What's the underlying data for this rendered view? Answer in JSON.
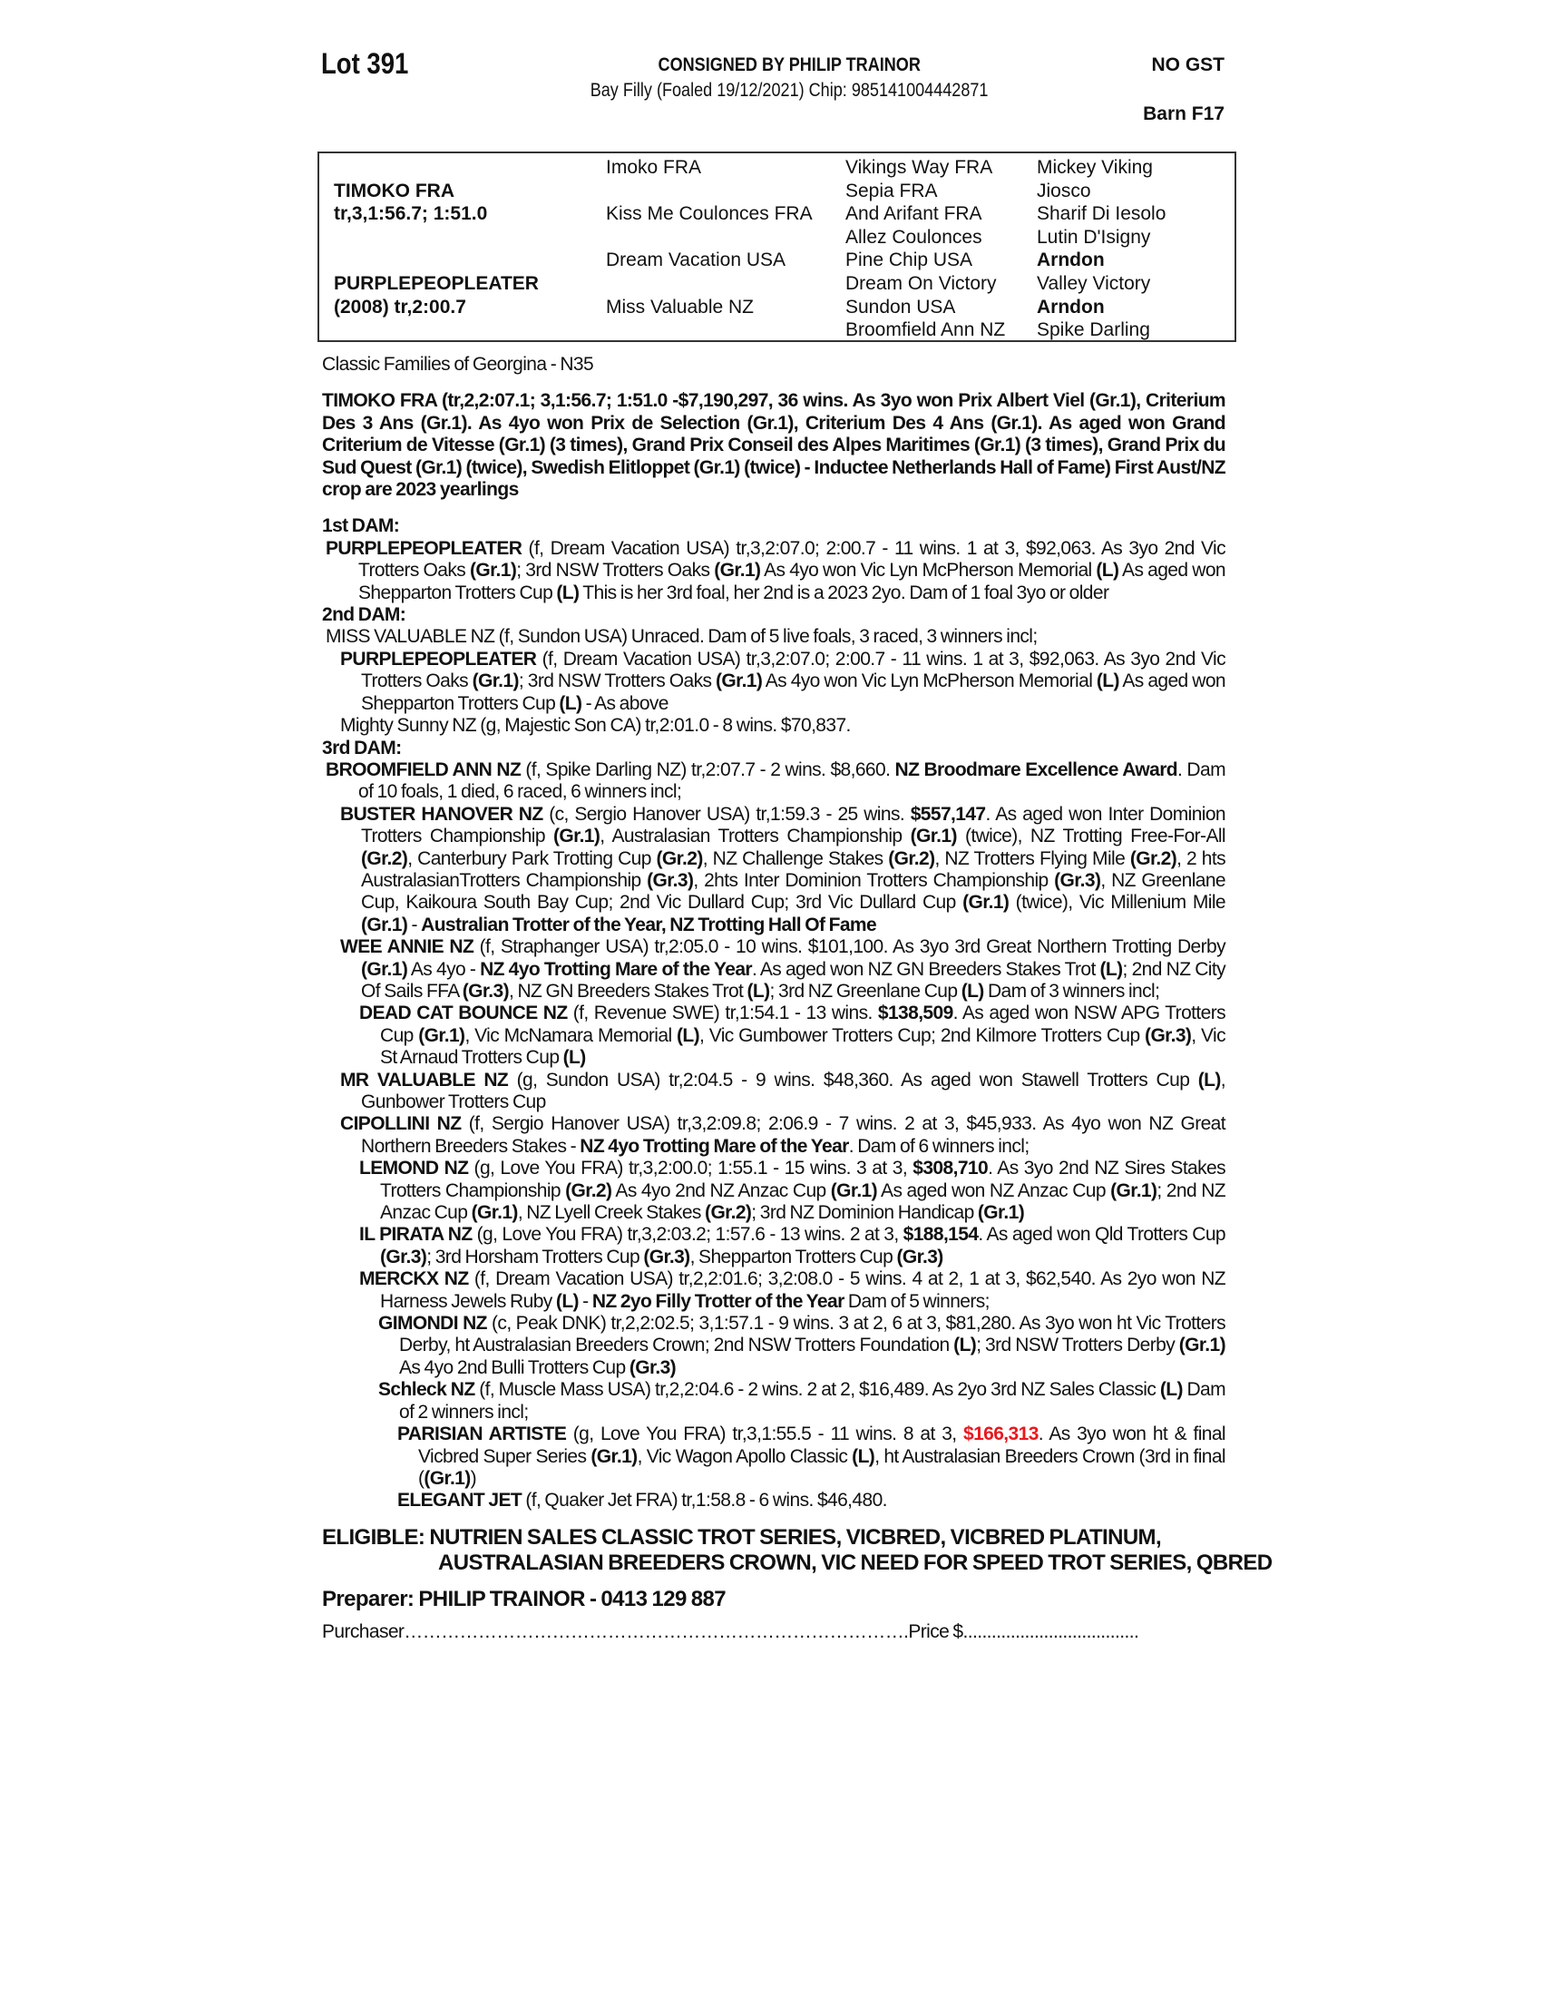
{
  "header": {
    "lot": "Lot 391",
    "consigned": "CONSIGNED BY PHILIP TRAINOR",
    "subtitle": "Bay Filly (Foaled 19/12/2021) Chip: 985141004442871",
    "gst": "NO GST",
    "barn": "Barn F17"
  },
  "pedigree": {
    "sire": "TIMOKO FRA",
    "sire_record": "tr,3,1:56.7; 1:51.0",
    "dam": "PURPLEPEOPLEATER",
    "dam_record": "(2008) tr,2:00.7",
    "gen2": [
      "Imoko FRA",
      "Kiss Me Coulonces FRA",
      "Dream Vacation USA",
      "Miss Valuable NZ"
    ],
    "gen3": [
      "Vikings Way FRA",
      "Sepia FRA",
      "And Arifant FRA",
      "Allez Coulonces",
      "Pine Chip USA",
      "Dream On Victory",
      "Sundon USA",
      "Broomfield Ann NZ"
    ],
    "gen4": [
      "Mickey Viking",
      "Jiosco",
      "Sharif Di Iesolo",
      "Lutin D'Isigny",
      "Arndon",
      "Valley Victory",
      "Arndon",
      "Spike Darling"
    ],
    "gen4_bold": [
      false,
      false,
      false,
      false,
      true,
      false,
      true,
      false
    ]
  },
  "family": "Classic Families of Georgina - N35",
  "sire_text": "TIMOKO FRA (tr,2,2:07.1; 3,1:56.7; 1:51.0 -$7,190,297, 36 wins. As 3yo won Prix Albert Viel (Gr.1), Criterium Des 3 Ans (Gr.1). As 4yo won Prix de Selection (Gr.1), Criterium Des 4 Ans (Gr.1). As aged won Grand Criterium de Vitesse (Gr.1) (3 times), Grand Prix Conseil des Alpes Maritimes (Gr.1) (3 times), Grand Prix du Sud Quest (Gr.1) (twice), Swedish Elitloppet (Gr.1) (twice) - Inductee Netherlands Hall of Fame) First Aust/NZ  crop are 2023 yearlings",
  "highlight_color": "#e8191e",
  "sections": [
    {
      "heading": "1st DAM:",
      "entries": [
        {
          "level": 0,
          "segs": [
            [
              "PURPLEPEOPLEATER",
              "b"
            ],
            [
              " (f, Dream Vacation USA) tr,3,2:07.0; 2:00.7 - 11 wins. 1 at 3, $92,063. As 3yo 2nd Vic Trotters Oaks ",
              "n"
            ],
            [
              "(Gr.1)",
              "b"
            ],
            [
              "; 3rd NSW Trotters Oaks ",
              "n"
            ],
            [
              "(Gr.1)",
              "b"
            ],
            [
              " As 4yo won Vic Lyn McPherson Memorial ",
              "n"
            ],
            [
              "(L)",
              "b"
            ],
            [
              " As aged won Shepparton Trotters Cup ",
              "n"
            ],
            [
              "(L)",
              "b"
            ],
            [
              " This is her 3rd foal, her 2nd is a 2023 2yo. Dam of 1 foal 3yo or older",
              "n"
            ]
          ]
        }
      ]
    },
    {
      "heading": "2nd DAM:",
      "entries": [
        {
          "level": 0,
          "segs": [
            [
              "MISS VALUABLE NZ (f, Sundon USA) Unraced. Dam of 5 live foals, 3 raced, 3 winners incl;",
              "n"
            ]
          ]
        },
        {
          "level": 1,
          "segs": [
            [
              "PURPLEPEOPLEATER",
              "b"
            ],
            [
              " (f, Dream Vacation USA) tr,3,2:07.0; 2:00.7 - 11 wins. 1 at 3, $92,063. As 3yo 2nd Vic Trotters Oaks ",
              "n"
            ],
            [
              "(Gr.1)",
              "b"
            ],
            [
              "; 3rd NSW Trotters Oaks ",
              "n"
            ],
            [
              "(Gr.1)",
              "b"
            ],
            [
              " As 4yo won Vic Lyn McPherson Memorial ",
              "n"
            ],
            [
              "(L)",
              "b"
            ],
            [
              " As aged won Shepparton Trotters Cup ",
              "n"
            ],
            [
              "(L)",
              "b"
            ],
            [
              " - As above",
              "n"
            ]
          ]
        },
        {
          "level": 1,
          "segs": [
            [
              "Mighty Sunny NZ (g, Majestic Son CA) tr,2:01.0 - 8 wins. $70,837.",
              "n"
            ]
          ]
        }
      ]
    },
    {
      "heading": "3rd DAM:",
      "entries": [
        {
          "level": 0,
          "segs": [
            [
              "BROOMFIELD ANN NZ",
              "b"
            ],
            [
              " (f, Spike Darling NZ) tr,2:07.7 - 2 wins. $8,660. ",
              "n"
            ],
            [
              "NZ Broodmare Excellence Award",
              "b"
            ],
            [
              ". Dam of 10 foals, 1 died, 6 raced, 6 winners incl;",
              "n"
            ]
          ]
        },
        {
          "level": 1,
          "segs": [
            [
              "BUSTER HANOVER NZ",
              "b"
            ],
            [
              " (c, Sergio Hanover USA) tr,1:59.3 - 25 wins. ",
              "n"
            ],
            [
              "$557,147",
              "b"
            ],
            [
              ". As aged won Inter Dominion Trotters Championship ",
              "n"
            ],
            [
              "(Gr.1)",
              "b"
            ],
            [
              ", Australasian Trotters Championship ",
              "n"
            ],
            [
              "(Gr.1)",
              "b"
            ],
            [
              " (twice), NZ Trotting Free-For-All ",
              "n"
            ],
            [
              "(Gr.2)",
              "b"
            ],
            [
              ", Canterbury Park Trotting Cup ",
              "n"
            ],
            [
              "(Gr.2)",
              "b"
            ],
            [
              ", NZ Challenge Stakes ",
              "n"
            ],
            [
              "(Gr.2)",
              "b"
            ],
            [
              ", NZ Trotters Flying Mile ",
              "n"
            ],
            [
              "(Gr.2)",
              "b"
            ],
            [
              ", 2 hts AustralasianTrotters Championship ",
              "n"
            ],
            [
              "(Gr.3)",
              "b"
            ],
            [
              ", 2hts Inter Dominion Trotters Championship ",
              "n"
            ],
            [
              "(Gr.3)",
              "b"
            ],
            [
              ", NZ Greenlane Cup, Kaikoura South Bay Cup; 2nd Vic Dullard Cup; 3rd Vic Dullard Cup ",
              "n"
            ],
            [
              "(Gr.1)",
              "b"
            ],
            [
              " (twice), Vic Millenium Mile ",
              "n"
            ],
            [
              "(Gr.1)",
              "b"
            ],
            [
              " - ",
              "n"
            ],
            [
              "Australian Trotter of the Year, NZ Trotting Hall Of Fame",
              "b"
            ]
          ]
        },
        {
          "level": 1,
          "segs": [
            [
              "WEE ANNIE NZ",
              "b"
            ],
            [
              " (f, Straphanger USA) tr,2:05.0 - 10 wins. $101,100. As 3yo 3rd Great Northern Trotting Derby ",
              "n"
            ],
            [
              "(Gr.1)",
              "b"
            ],
            [
              " As 4yo - ",
              "n"
            ],
            [
              "NZ 4yo Trotting Mare of the Year",
              "b"
            ],
            [
              ". As aged won NZ GN Breeders Stakes Trot ",
              "n"
            ],
            [
              "(L)",
              "b"
            ],
            [
              "; 2nd NZ City Of Sails FFA ",
              "n"
            ],
            [
              "(Gr.3)",
              "b"
            ],
            [
              ", NZ GN Breeders Stakes Trot ",
              "n"
            ],
            [
              "(L)",
              "b"
            ],
            [
              "; 3rd NZ Greenlane Cup ",
              "n"
            ],
            [
              "(L)",
              "b"
            ],
            [
              " Dam of 3 winners incl;",
              "n"
            ]
          ]
        },
        {
          "level": 2,
          "segs": [
            [
              "DEAD CAT BOUNCE NZ",
              "b"
            ],
            [
              " (f, Revenue SWE) tr,1:54.1 - 13 wins. ",
              "n"
            ],
            [
              "$138,509",
              "b"
            ],
            [
              ". As aged won NSW APG Trotters Cup ",
              "n"
            ],
            [
              "(Gr.1)",
              "b"
            ],
            [
              ", Vic McNamara Memorial ",
              "n"
            ],
            [
              "(L)",
              "b"
            ],
            [
              ", Vic Gumbower Trotters Cup; 2nd Kilmore Trotters Cup ",
              "n"
            ],
            [
              "(Gr.3)",
              "b"
            ],
            [
              ", Vic St Arnaud Trotters Cup ",
              "n"
            ],
            [
              "(L)",
              "b"
            ]
          ]
        },
        {
          "level": 1,
          "segs": [
            [
              "MR VALUABLE NZ",
              "b"
            ],
            [
              " (g, Sundon USA) tr,2:04.5 - 9 wins. $48,360. As aged won Stawell Trotters Cup ",
              "n"
            ],
            [
              "(L)",
              "b"
            ],
            [
              ", Gunbower Trotters Cup",
              "n"
            ]
          ]
        },
        {
          "level": 1,
          "segs": [
            [
              "CIPOLLINI NZ",
              "b"
            ],
            [
              " (f, Sergio Hanover USA) tr,3,2:09.8; 2:06.9 - 7 wins. 2 at 3, $45,933. As 4yo won NZ Great Northern Breeders Stakes - ",
              "n"
            ],
            [
              "NZ 4yo Trotting Mare of the Year",
              "b"
            ],
            [
              ". Dam of 6 winners incl;",
              "n"
            ]
          ]
        },
        {
          "level": 2,
          "segs": [
            [
              "LEMOND NZ",
              "b"
            ],
            [
              " (g, Love You FRA) tr,3,2:00.0; 1:55.1 - 15 wins. 3 at 3, ",
              "n"
            ],
            [
              "$308,710",
              "b"
            ],
            [
              ". As 3yo 2nd NZ Sires Stakes Trotters Championship ",
              "n"
            ],
            [
              "(Gr.2)",
              "b"
            ],
            [
              " As 4yo 2nd NZ Anzac Cup ",
              "n"
            ],
            [
              "(Gr.1)",
              "b"
            ],
            [
              " As aged won NZ Anzac Cup ",
              "n"
            ],
            [
              "(Gr.1)",
              "b"
            ],
            [
              "; 2nd NZ Anzac Cup ",
              "n"
            ],
            [
              "(Gr.1)",
              "b"
            ],
            [
              ", NZ Lyell Creek Stakes ",
              "n"
            ],
            [
              "(Gr.2)",
              "b"
            ],
            [
              "; 3rd NZ Dominion Handicap ",
              "n"
            ],
            [
              "(Gr.1)",
              "b"
            ]
          ]
        },
        {
          "level": 2,
          "segs": [
            [
              "IL PIRATA NZ",
              "b"
            ],
            [
              " (g, Love You FRA) tr,3,2:03.2; 1:57.6 - 13 wins. 2 at 3, ",
              "n"
            ],
            [
              "$188,154",
              "b"
            ],
            [
              ". As aged won Qld Trotters Cup ",
              "n"
            ],
            [
              "(Gr.3)",
              "b"
            ],
            [
              "; 3rd Horsham Trotters Cup ",
              "n"
            ],
            [
              "(Gr.3)",
              "b"
            ],
            [
              ", Shepparton Trotters Cup ",
              "n"
            ],
            [
              "(Gr.3)",
              "b"
            ]
          ]
        },
        {
          "level": 2,
          "segs": [
            [
              "MERCKX NZ",
              "b"
            ],
            [
              " (f, Dream Vacation USA) tr,2,2:01.6; 3,2:08.0 - 5 wins. 4 at 2, 1 at 3, $62,540. As 2yo won NZ Harness Jewels Ruby ",
              "n"
            ],
            [
              "(L)",
              "b"
            ],
            [
              " - ",
              "n"
            ],
            [
              "NZ 2yo Filly Trotter of the Year",
              "b"
            ],
            [
              " Dam of 5 winners;",
              "n"
            ]
          ]
        },
        {
          "level": 3,
          "segs": [
            [
              "GIMONDI NZ",
              "b"
            ],
            [
              " (c, Peak DNK) tr,2,2:02.5; 3,1:57.1 - 9 wins. 3 at 2, 6 at 3, $81,280. As 3yo won ht Vic Trotters Derby, ht Australasian Breeders Crown; 2nd NSW Trotters Foundation ",
              "n"
            ],
            [
              "(L)",
              "b"
            ],
            [
              "; 3rd NSW Trotters Derby ",
              "n"
            ],
            [
              "(Gr.1)",
              "b"
            ],
            [
              " As 4yo 2nd Bulli Trotters Cup ",
              "n"
            ],
            [
              "(Gr.3)",
              "b"
            ]
          ]
        },
        {
          "level": 3,
          "segs": [
            [
              "Schleck NZ",
              "b"
            ],
            [
              " (f, Muscle Mass USA) tr,2,2:04.6 - 2 wins. 2 at 2, $16,489. As 2yo 3rd NZ Sales Classic ",
              "n"
            ],
            [
              "(L)",
              "b"
            ],
            [
              " Dam of 2 winners incl;",
              "n"
            ]
          ]
        },
        {
          "level": 4,
          "segs": [
            [
              "PARISIAN ARTISTE",
              "b"
            ],
            [
              " (g, Love You FRA) tr,3,1:55.5 - 11 wins. 8 at 3, ",
              "n"
            ],
            [
              "$166,313",
              "r"
            ],
            [
              ". As 3yo won ht & final Vicbred Super Series ",
              "n"
            ],
            [
              "(Gr.1)",
              "b"
            ],
            [
              ", Vic Wagon Apollo Classic ",
              "n"
            ],
            [
              "(L)",
              "b"
            ],
            [
              ", ht Australasian Breeders Crown (3rd in final (",
              "n"
            ],
            [
              "(Gr.1)",
              "b"
            ],
            [
              ")",
              "n"
            ]
          ]
        },
        {
          "level": 4,
          "segs": [
            [
              "ELEGANT JET",
              "b"
            ],
            [
              " (f, Quaker Jet FRA) tr,1:58.8 - 6 wins. $46,480.",
              "n"
            ]
          ]
        }
      ]
    }
  ],
  "eligible": "ELIGIBLE: NUTRIEN SALES CLASSIC TROT SERIES, VICBRED, VICBRED PLATINUM, AUSTRALASIAN BREEDERS CROWN, VIC NEED FOR SPEED TROT SERIES, QBRED",
  "preparer": "Preparer: PHILIP TRAINOR - 0413 129 887",
  "purchaser": "Purchaser……………………………………………………………………….Price $....................................."
}
